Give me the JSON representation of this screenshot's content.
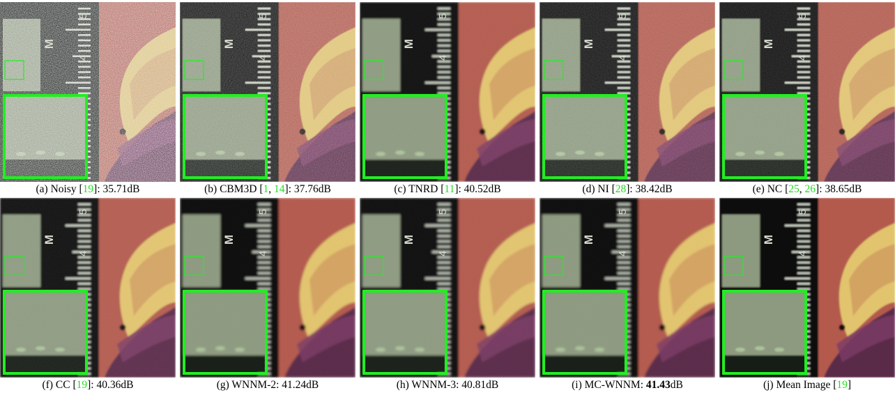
{
  "figure": {
    "panels": [
      {
        "id": "a",
        "caption_prefix": "(a) Noisy [",
        "refs": [
          "19"
        ],
        "caption_mid": "]: ",
        "psnr": "35.71dB",
        "noise_level": 0.3,
        "smooth": 0.0
      },
      {
        "id": "b",
        "caption_prefix": "(b) CBM3D [",
        "refs": [
          "1",
          "14"
        ],
        "caption_mid": "]: ",
        "psnr": "37.76dB",
        "noise_level": 0.15,
        "smooth": 0.6
      },
      {
        "id": "c",
        "caption_prefix": "(c) TNRD [",
        "refs": [
          "11"
        ],
        "caption_mid": "]: ",
        "psnr": "40.52dB",
        "noise_level": 0.03,
        "smooth": 1.4
      },
      {
        "id": "d",
        "caption_prefix": "(d) NI [",
        "refs": [
          "28"
        ],
        "caption_mid": "]: ",
        "psnr": "38.42dB",
        "noise_level": 0.1,
        "smooth": 0.8
      },
      {
        "id": "e",
        "caption_prefix": "(e) NC [",
        "refs": [
          "25",
          "26"
        ],
        "caption_mid": "]: ",
        "psnr": "38.65dB",
        "noise_level": 0.08,
        "smooth": 0.9
      },
      {
        "id": "f",
        "caption_prefix": "(f) CC [",
        "refs": [
          "19"
        ],
        "caption_mid": "]: ",
        "psnr": "40.36dB",
        "noise_level": 0.04,
        "smooth": 1.2
      },
      {
        "id": "g",
        "caption_prefix": "(g) WNNM-2: ",
        "refs": [],
        "caption_mid": "",
        "psnr": "41.24dB",
        "noise_level": 0.01,
        "smooth": 1.6
      },
      {
        "id": "h",
        "caption_prefix": "(h) WNNM-3: ",
        "refs": [],
        "caption_mid": "",
        "psnr": "40.81dB",
        "noise_level": 0.02,
        "smooth": 1.6
      },
      {
        "id": "i",
        "caption_prefix": "(i) MC-WNNM: ",
        "refs": [],
        "caption_mid": "",
        "psnr": "41.43dB",
        "psnr_bold": true,
        "noise_level": 0.01,
        "smooth": 1.5
      },
      {
        "id": "j",
        "caption_prefix": "(j) Mean Image [",
        "refs": [
          "19"
        ],
        "caption_mid": "]",
        "psnr": "",
        "noise_level": 0.0,
        "smooth": 1.0
      }
    ],
    "ruler_labels": [
      "5",
      "M",
      "4"
    ],
    "colors": {
      "zoom_box": "#22ee22",
      "citation": "#22dd22",
      "patch": "#8d9a80",
      "ruler": "#0c110d",
      "background_red": "#b35a4e",
      "petal_yellow": "#e2c46e",
      "flower_purple": "#5a2a4a"
    }
  }
}
